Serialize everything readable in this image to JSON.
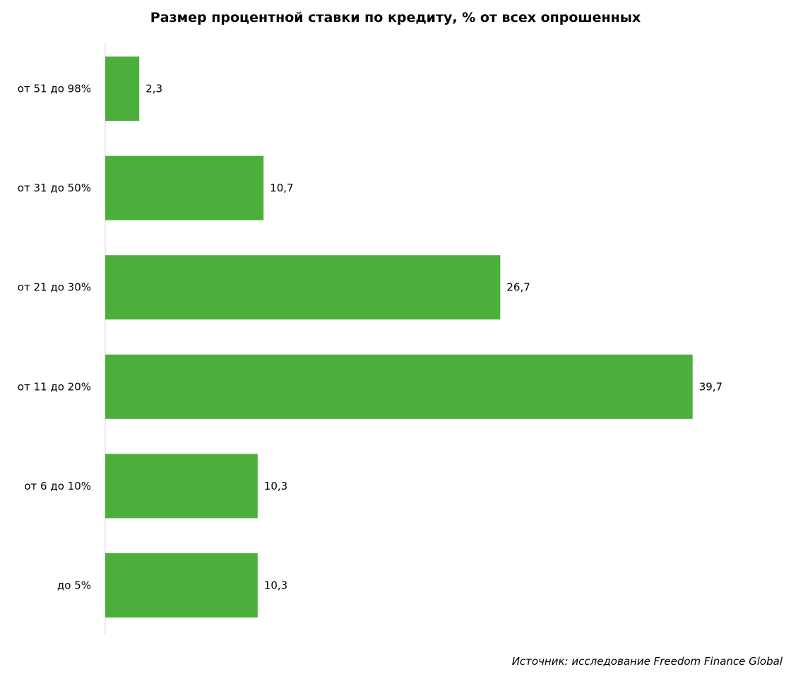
{
  "chart_data": {
    "type": "bar",
    "orientation": "horizontal",
    "title": "Размер процентной ставки по кредиту, % от всех опрошенных",
    "categories": [
      "от 51 до 98%",
      "от 31 до 50%",
      "от 21 до 30%",
      "от 11 до 20%",
      "от 6 до 10%",
      "до 5%"
    ],
    "values": [
      2.3,
      10.7,
      26.7,
      39.7,
      10.3,
      10.3
    ],
    "value_labels": [
      "2,3",
      "10,7",
      "26,7",
      "39,7",
      "10,3",
      "10,3"
    ],
    "xlim": [
      0,
      40
    ],
    "bar_color": "#4caf3c",
    "grid": false,
    "legend": "none"
  },
  "source": "Источник: исследование Freedom Finance Global"
}
